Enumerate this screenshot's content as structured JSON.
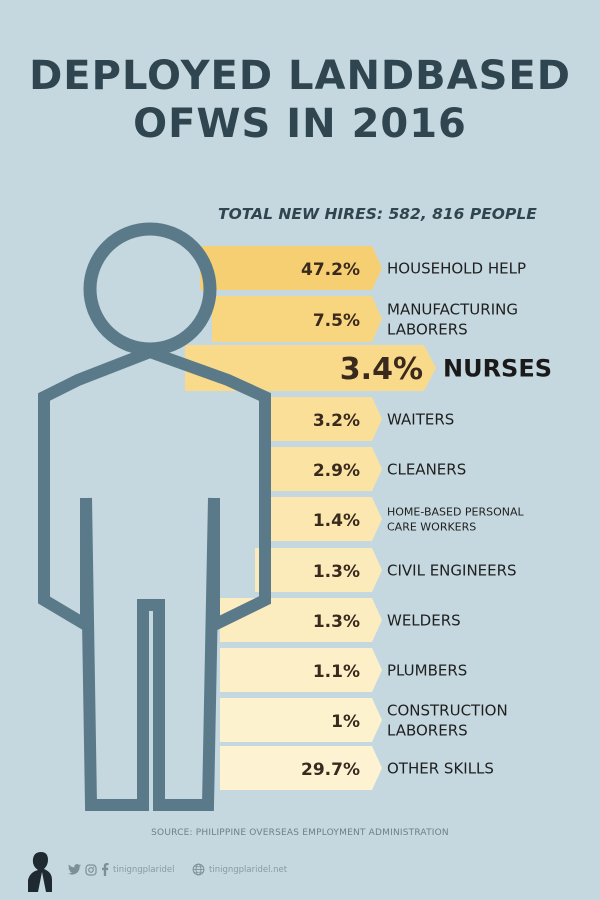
{
  "header": {
    "title_line1": "DEPLOYED LANDBASED",
    "title_line2": "OFWS IN 2016",
    "total_hires": "TOTAL NEW HIRES: 582, 816 PEOPLE"
  },
  "colors": {
    "background": "#c5d8df",
    "figure_outline": "#5a7a8a",
    "title": "#2f4550",
    "bar_shades": [
      "#f6cf72",
      "#f8d57f",
      "#f9da8b",
      "#fadf98",
      "#fbe3a4",
      "#fbe7af",
      "#fcebba",
      "#fcedc1",
      "#fdf0c8",
      "#fdf2ce",
      "#fdf3d2"
    ]
  },
  "chart_data": {
    "type": "bar",
    "highlight": "NURSES",
    "categories": [
      "HOUSEHOLD HELP",
      "MANUFACTURING LABORERS",
      "NURSES",
      "WAITERS",
      "CLEANERS",
      "HOME-BASED PERSONAL CARE WORKERS",
      "CIVIL ENGINEERS",
      "WELDERS",
      "PLUMBERS",
      "CONSTRUCTION LABORERS",
      "OTHER SKILLS"
    ],
    "label_lines": [
      [
        "HOUSEHOLD HELP"
      ],
      [
        "MANUFACTURING",
        "LABORERS"
      ],
      [
        "NURSES"
      ],
      [
        "WAITERS"
      ],
      [
        "CLEANERS"
      ],
      [
        "HOME-BASED PERSONAL",
        "CARE WORKERS"
      ],
      [
        "CIVIL ENGINEERS"
      ],
      [
        "WELDERS"
      ],
      [
        "PLUMBERS"
      ],
      [
        "CONSTRUCTION",
        "LABORERS"
      ],
      [
        "OTHER SKILLS"
      ]
    ],
    "values": [
      47.2,
      7.5,
      3.4,
      3.2,
      2.9,
      1.4,
      1.3,
      1.3,
      1.1,
      1,
      29.7
    ],
    "value_labels": [
      "47.2%",
      "7.5%",
      "3.4%",
      "3.2%",
      "2.9%",
      "1.4%",
      "1.3%",
      "1.3%",
      "1.1%",
      "1%",
      "29.7%"
    ]
  },
  "footer": {
    "source": "SOURCE: PHILIPPINE OVERSEAS EMPLOYMENT ADMINISTRATION",
    "handle": "tinigngplaridel",
    "site": "tinigngplaridel.net",
    "icons": [
      "avatar-silhouette-icon",
      "twitter-icon",
      "instagram-icon",
      "facebook-icon",
      "globe-icon"
    ]
  }
}
